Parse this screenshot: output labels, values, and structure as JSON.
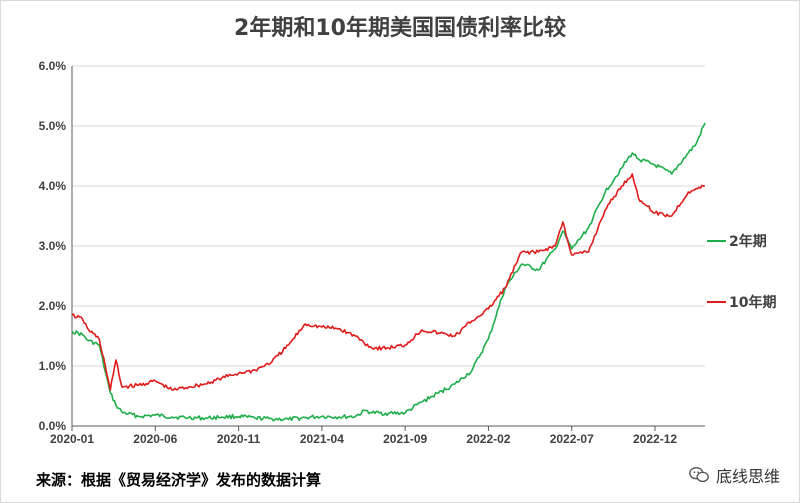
{
  "chart_data": {
    "type": "line",
    "title": "2年期和10年期美国国债利率比较",
    "ylim": [
      0,
      6
    ],
    "yticks": [
      "0.0%",
      "1.0%",
      "2.0%",
      "3.0%",
      "4.0%",
      "5.0%",
      "6.0%"
    ],
    "ytick_values": [
      0,
      1,
      2,
      3,
      4,
      5,
      6
    ],
    "x_start": "2020-01",
    "x_end": "2023-03",
    "xticks": [
      "2020-01",
      "2020-06",
      "2020-11",
      "2021-04",
      "2021-09",
      "2022-02",
      "2022-07",
      "2022-12"
    ],
    "grid": "horizontal",
    "legend": "right",
    "series": [
      {
        "name": "2年期",
        "color": "#1fae4a",
        "x": [
          "2020-01",
          "2020-01-20",
          "2020-02",
          "2020-02-20",
          "2020-03-01",
          "2020-03-10",
          "2020-03-20",
          "2020-04",
          "2020-05",
          "2020-06",
          "2020-07",
          "2020-08",
          "2020-09",
          "2020-10",
          "2020-11",
          "2020-12",
          "2021-01",
          "2021-02",
          "2021-03",
          "2021-04",
          "2021-05",
          "2021-06",
          "2021-06-20",
          "2021-07",
          "2021-08",
          "2021-09",
          "2021-10",
          "2021-11",
          "2021-12",
          "2022-01",
          "2022-02",
          "2022-03",
          "2022-04",
          "2022-05",
          "2022-06",
          "2022-06-15",
          "2022-07",
          "2022-08",
          "2022-09",
          "2022-10",
          "2022-10-20",
          "2022-11",
          "2022-12",
          "2023-01",
          "2023-02",
          "2023-02-15",
          "2023-03"
        ],
        "values": [
          1.58,
          1.52,
          1.42,
          1.35,
          0.9,
          0.55,
          0.35,
          0.23,
          0.16,
          0.18,
          0.15,
          0.14,
          0.13,
          0.15,
          0.16,
          0.13,
          0.12,
          0.11,
          0.14,
          0.16,
          0.15,
          0.16,
          0.26,
          0.22,
          0.21,
          0.22,
          0.4,
          0.55,
          0.7,
          0.92,
          1.45,
          2.3,
          2.7,
          2.6,
          2.95,
          3.25,
          2.95,
          3.3,
          3.9,
          4.3,
          4.55,
          4.45,
          4.35,
          4.2,
          4.55,
          4.7,
          5.05
        ]
      },
      {
        "name": "10年期",
        "color": "#e01b1b",
        "x": [
          "2020-01",
          "2020-01-20",
          "2020-02",
          "2020-02-20",
          "2020-03-01",
          "2020-03-10",
          "2020-03-20",
          "2020-04",
          "2020-05",
          "2020-06",
          "2020-07",
          "2020-08",
          "2020-09",
          "2020-10",
          "2020-11",
          "2020-12",
          "2021-01",
          "2021-02",
          "2021-03",
          "2021-04",
          "2021-05",
          "2021-06",
          "2021-07",
          "2021-08",
          "2021-09",
          "2021-10",
          "2021-11",
          "2021-12",
          "2022-01",
          "2022-02",
          "2022-03",
          "2022-04",
          "2022-05",
          "2022-06",
          "2022-06-15",
          "2022-07",
          "2022-08",
          "2022-09",
          "2022-10",
          "2022-10-20",
          "2022-11",
          "2022-12",
          "2023-01",
          "2023-02",
          "2023-03"
        ],
        "values": [
          1.85,
          1.78,
          1.6,
          1.45,
          1.0,
          0.6,
          1.1,
          0.65,
          0.68,
          0.75,
          0.6,
          0.65,
          0.7,
          0.8,
          0.88,
          0.93,
          1.07,
          1.35,
          1.7,
          1.65,
          1.62,
          1.5,
          1.3,
          1.3,
          1.35,
          1.6,
          1.55,
          1.5,
          1.75,
          1.95,
          2.3,
          2.9,
          2.9,
          3.0,
          3.4,
          2.85,
          2.9,
          3.6,
          4.0,
          4.2,
          3.8,
          3.55,
          3.5,
          3.9,
          4.0
        ]
      }
    ]
  },
  "footer": {
    "source": "来源：根据《贸易经济学》发布的数据计算",
    "watermark": "底线思维"
  }
}
